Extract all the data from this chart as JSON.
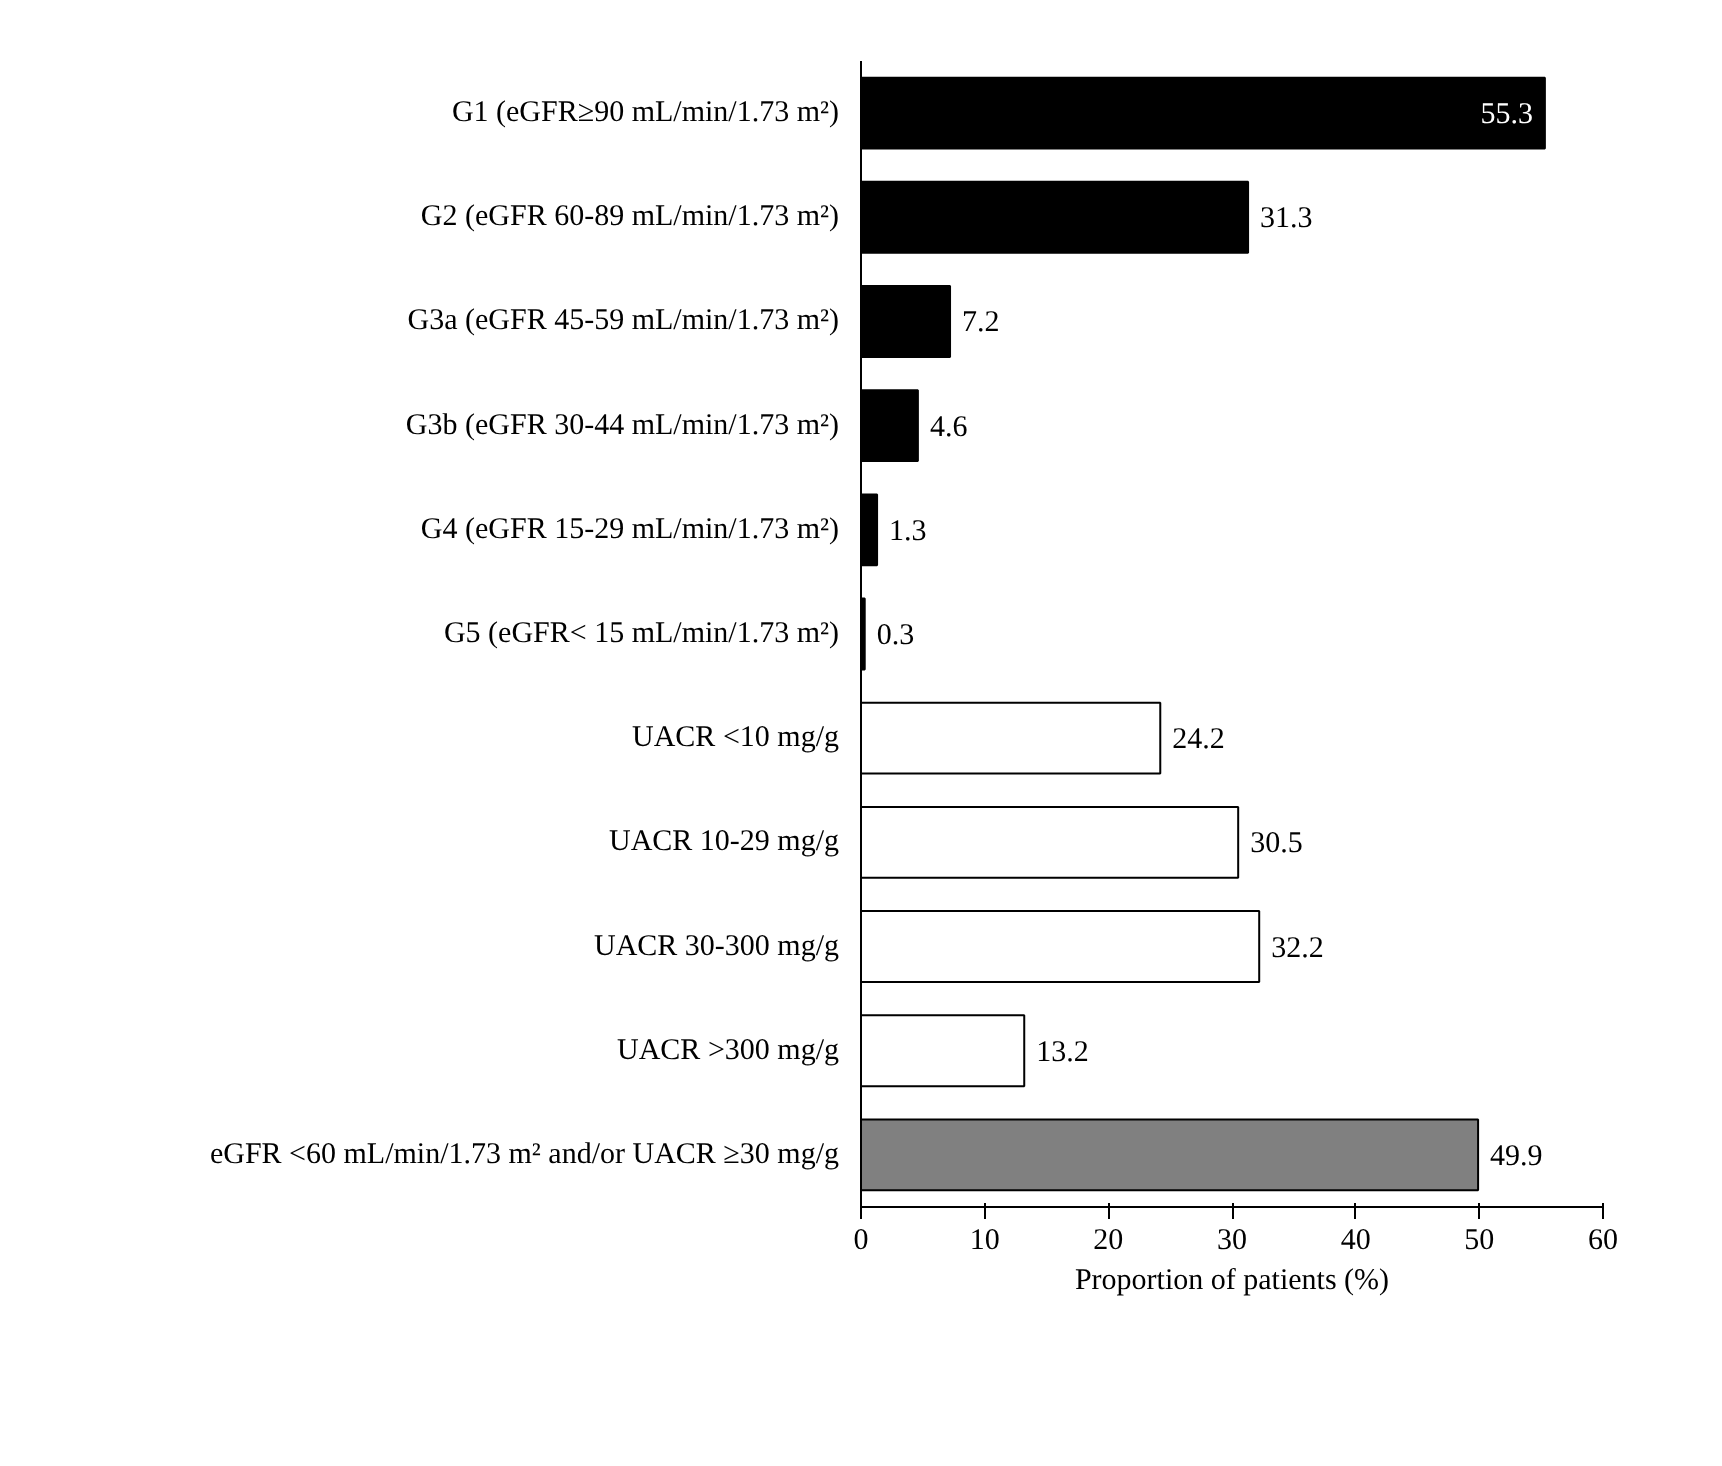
{
  "chart_data": {
    "type": "bar",
    "orientation": "horizontal",
    "xlabel": "Proportion of patients (%)",
    "categories": [
      "G1 (eGFR≥90 mL/min/1.73 m²)",
      "G2 (eGFR 60-89 mL/min/1.73 m²)",
      "G3a (eGFR 45-59 mL/min/1.73 m²)",
      "G3b (eGFR 30-44 mL/min/1.73 m²)",
      "G4 (eGFR 15-29 mL/min/1.73 m²)",
      "G5 (eGFR< 15 mL/min/1.73 m²)",
      "UACR <10 mg/g",
      "UACR 10-29 mg/g",
      "UACR 30-300 mg/g",
      "UACR >300 mg/g",
      "eGFR <60 mL/min/1.73 m² and/or UACR ≥30 mg/g"
    ],
    "values": [
      55.3,
      31.3,
      7.2,
      4.6,
      1.3,
      0.3,
      24.2,
      30.5,
      32.2,
      13.2,
      49.9
    ],
    "colors": [
      "#000000",
      "#000000",
      "#000000",
      "#000000",
      "#000000",
      "#000000",
      "#ffffff",
      "#ffffff",
      "#ffffff",
      "#ffffff",
      "#808080"
    ],
    "xlim": [
      0,
      60
    ],
    "xticks": [
      0,
      10,
      20,
      30,
      40,
      50,
      60
    ],
    "data_labels": true,
    "grid": false
  }
}
